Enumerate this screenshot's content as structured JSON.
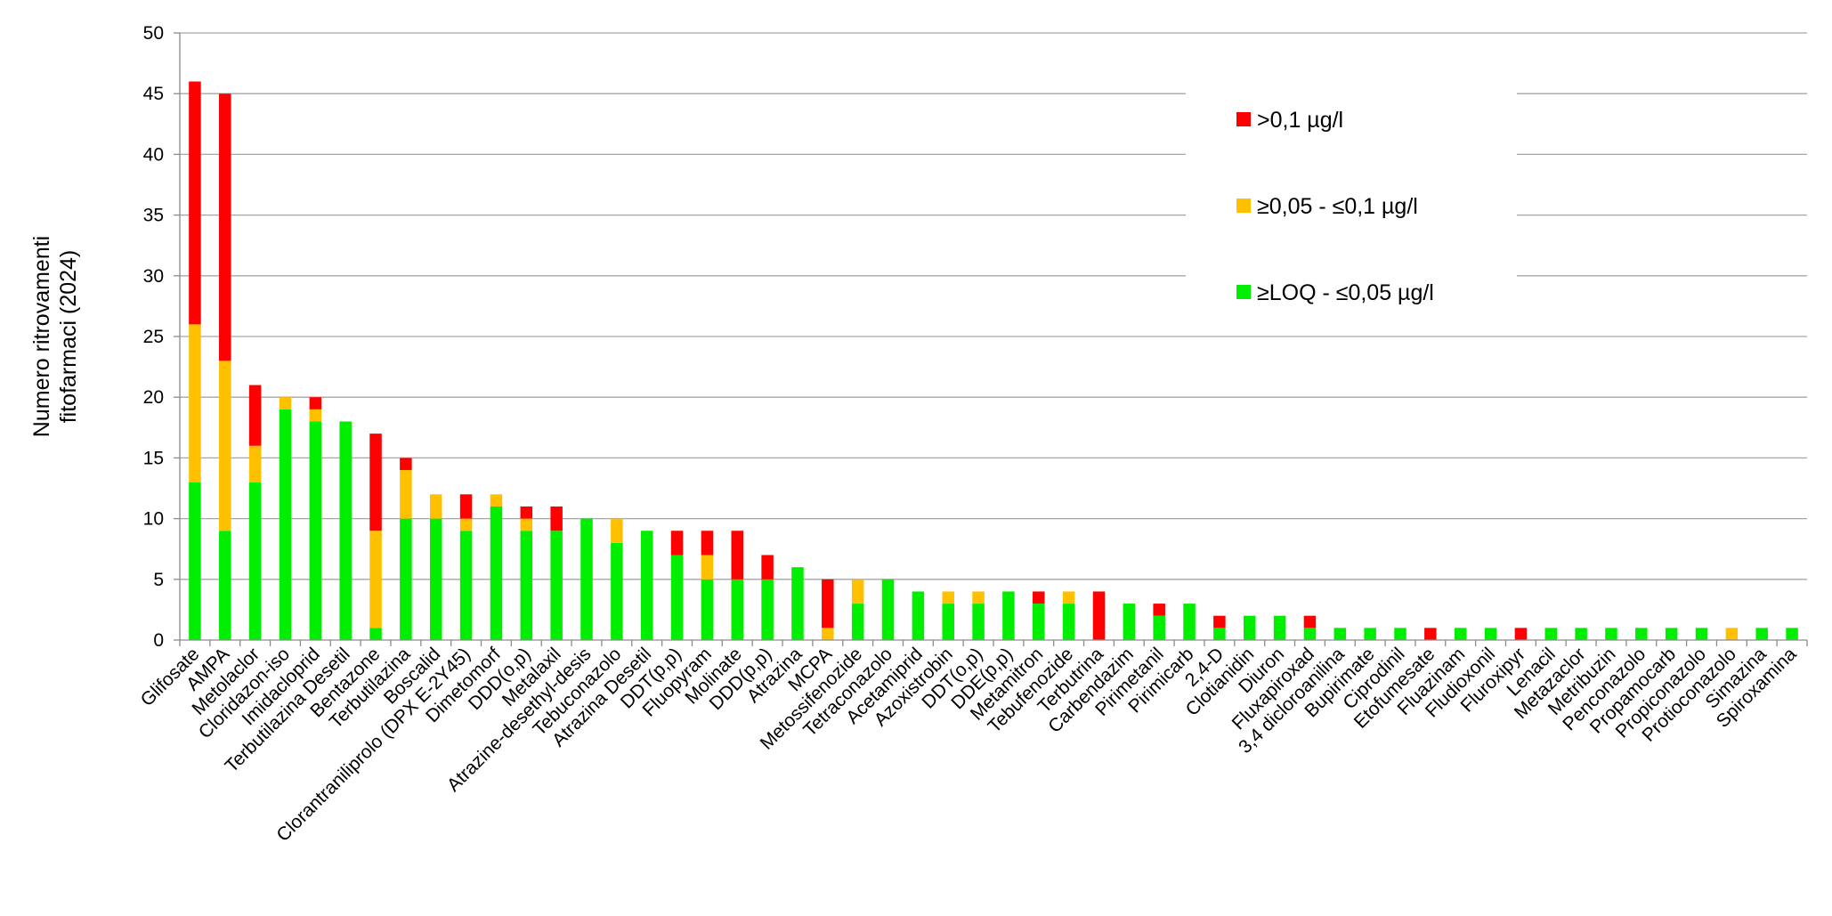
{
  "chart_data": {
    "type": "bar",
    "stacked": true,
    "title": "",
    "xlabel": "",
    "ylabel_lines": [
      "Numero ritrovamenti",
      "fitofarmaci (2024)"
    ],
    "ylim": [
      0,
      50
    ],
    "yticks": [
      0,
      5,
      10,
      15,
      20,
      25,
      30,
      35,
      40,
      45,
      50
    ],
    "grid": true,
    "legend_position": "top-right",
    "categories": [
      "Glifosate",
      "AMPA",
      "Metolaclor",
      "Cloridazon-iso",
      "Imidacloprid",
      "Terbutilazina Desetil",
      "Bentazone",
      "Terbutilazina",
      "Boscalid",
      "Clorantraniliprolo (DPX E-2Y45)",
      "Dimetomorf",
      "DDD(o,p)",
      "Metalaxil",
      "Atrazine-desethyl-desis",
      "Tebuconazolo",
      "Atrazina Desetil",
      "DDT(p,p)",
      "Fluopyram",
      "Molinate",
      "DDD(p,p)",
      "Atrazina",
      "MCPA",
      "Metossifenozide",
      "Tetraconazolo",
      "Acetamiprid",
      "Azoxistrobin",
      "DDT(o,p)",
      "DDE(p,p)",
      "Metamitron",
      "Tebufenozide",
      "Terbutrina",
      "Carbendazim",
      "Pirimetanil",
      "Pirimicarb",
      "2,4-D",
      "Clotianidin",
      "Diuron",
      "Fluxapiroxad",
      "3,4 dicloroanilina",
      "Bupirimate",
      "Ciprodinil",
      "Etofumesate",
      "Fluazinam",
      "Fludioxonil",
      "Fluroxipyr",
      "Lenacil",
      "Metazaclor",
      "Metribuzin",
      "Penconazolo",
      "Propamocarb",
      "Propiconazolo",
      "Protioconazolo",
      "Simazina",
      "Spiroxamina"
    ],
    "series": [
      {
        "name": "≥LOQ - ≤0,05 µg/l",
        "color": "#00ee00",
        "values": [
          13,
          9,
          13,
          19,
          18,
          18,
          1,
          10,
          10,
          9,
          11,
          9,
          9,
          10,
          8,
          9,
          7,
          5,
          5,
          5,
          6,
          0,
          3,
          5,
          4,
          3,
          3,
          4,
          3,
          3,
          0,
          3,
          2,
          3,
          1,
          2,
          2,
          1,
          1,
          1,
          1,
          0,
          1,
          1,
          0,
          1,
          1,
          1,
          1,
          1,
          1,
          0,
          1,
          1
        ]
      },
      {
        "name": "≥0,05 - ≤0,1 µg/l",
        "color": "#ffc000",
        "values": [
          13,
          14,
          3,
          1,
          1,
          0,
          8,
          4,
          2,
          1,
          1,
          1,
          0,
          0,
          2,
          0,
          0,
          2,
          0,
          0,
          0,
          1,
          2,
          0,
          0,
          1,
          1,
          0,
          0,
          1,
          0,
          0,
          0,
          0,
          0,
          0,
          0,
          0,
          0,
          0,
          0,
          0,
          0,
          0,
          0,
          0,
          0,
          0,
          0,
          0,
          0,
          1,
          0,
          0
        ]
      },
      {
        "name": ">0,1 µg/l",
        "color": "#ff0000",
        "values": [
          20,
          22,
          5,
          0,
          1,
          0,
          8,
          1,
          0,
          2,
          0,
          1,
          2,
          0,
          0,
          0,
          2,
          2,
          4,
          2,
          0,
          4,
          0,
          0,
          0,
          0,
          0,
          0,
          1,
          0,
          4,
          0,
          1,
          0,
          1,
          0,
          0,
          1,
          0,
          0,
          0,
          1,
          0,
          0,
          1,
          0,
          0,
          0,
          0,
          0,
          0,
          0,
          0,
          0
        ]
      }
    ],
    "legend_order": [
      ">0,1 µg/l",
      "≥0,05 - ≤0,1 µg/l",
      "≥LOQ - ≤0,05 µg/l"
    ]
  }
}
